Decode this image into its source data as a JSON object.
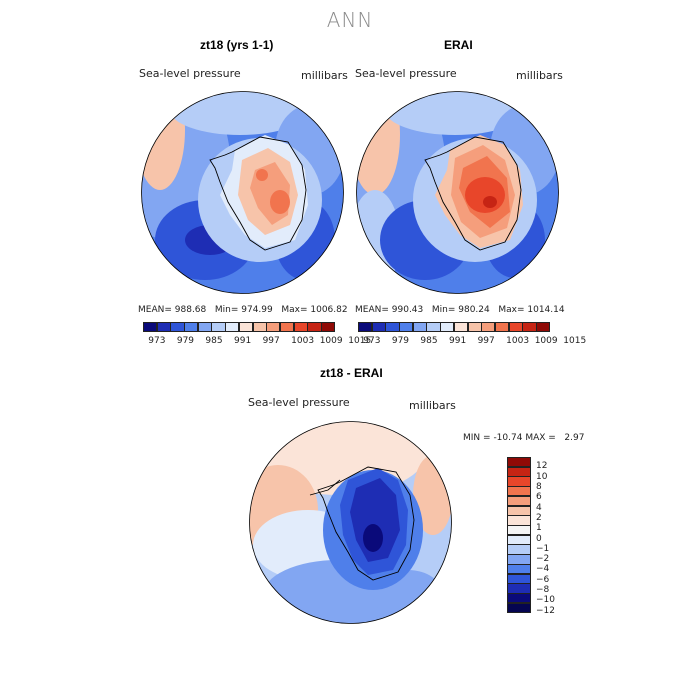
{
  "page_title": "ANN",
  "panels": [
    {
      "title": "zt18 (yrs 1-1)",
      "variable": "Sea-level pressure",
      "units": "millibars",
      "mean_label": "MEAN=",
      "mean": "988.68",
      "min_label": "Min=",
      "min": "974.99",
      "max_label": "Max=",
      "max": "1006.82",
      "color_levels": [
        973,
        979,
        985,
        991,
        997,
        1003,
        1009,
        1015
      ]
    },
    {
      "title": "ERAI",
      "variable": "Sea-level pressure",
      "units": "millibars",
      "mean_label": "MEAN=",
      "mean": "990.43",
      "min_label": "Min=",
      "min": "980.24",
      "max_label": "Max=",
      "max": "1014.14",
      "color_levels": [
        973,
        979,
        985,
        991,
        997,
        1003,
        1009,
        1015
      ]
    }
  ],
  "diff_panel": {
    "title": "zt18 - ERAI",
    "variable": "Sea-level pressure",
    "units": "millibars",
    "min_label": "MIN =",
    "min": "-10.74",
    "max_label": "MAX =",
    "max": "2.97",
    "color_levels": [
      "12",
      "10",
      "8",
      "6",
      "4",
      "2",
      "1",
      "0",
      "−1",
      "−2",
      "−4",
      "−6",
      "−8",
      "−10",
      "−12"
    ]
  },
  "colors": {
    "abs_scale": [
      "#0a0a7a",
      "#1e2db4",
      "#2f55d8",
      "#4f7fea",
      "#82a6f2",
      "#b5cdf7",
      "#e2ecfb",
      "#fbe4d8",
      "#f7c4aa",
      "#f59e7c",
      "#f1744e",
      "#e8462a",
      "#c62414",
      "#8f0a06"
    ],
    "diff_scale": [
      "#8f0a06",
      "#c62414",
      "#e8462a",
      "#f1744e",
      "#f59e7c",
      "#f7c4aa",
      "#fbe4d8",
      "#f5f5f5",
      "#e2ecfb",
      "#b5cdf7",
      "#82a6f2",
      "#4f7fea",
      "#2f55d8",
      "#1e2db4",
      "#0a0a7a",
      "#050550"
    ],
    "ocean_mid": "#82a6f2",
    "land_high": "#f1744e"
  }
}
